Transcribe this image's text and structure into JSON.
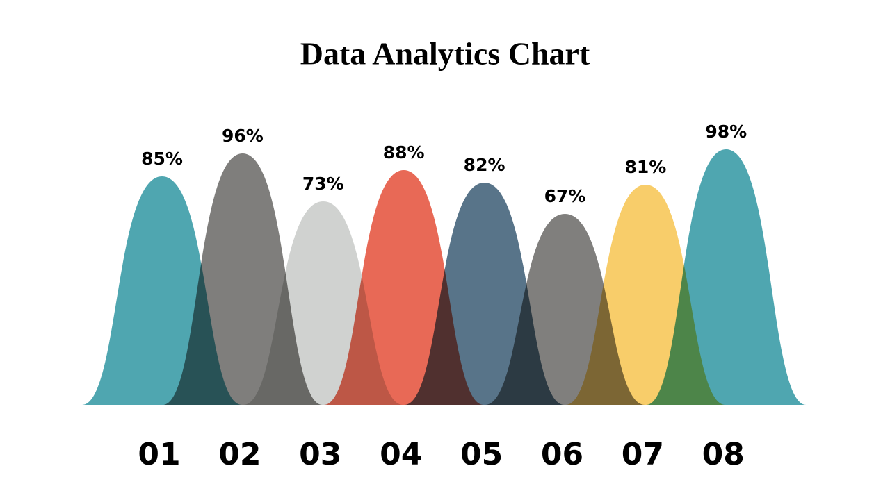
{
  "chart_data": {
    "type": "bell",
    "title": "Data Analytics Chart",
    "categories": [
      "01",
      "02",
      "03",
      "04",
      "05",
      "06",
      "07",
      "08"
    ],
    "values": [
      85,
      96,
      73,
      88,
      82,
      67,
      81,
      98
    ],
    "value_labels": [
      "85%",
      "96%",
      "73%",
      "88%",
      "82%",
      "67%",
      "81%",
      "98%"
    ],
    "colors": [
      "#4fa6b0",
      "#7f7e7c",
      "#d0d2d0",
      "#e86956",
      "#587489",
      "#807f7d",
      "#f8cd6a",
      "#4fa6b0"
    ]
  }
}
